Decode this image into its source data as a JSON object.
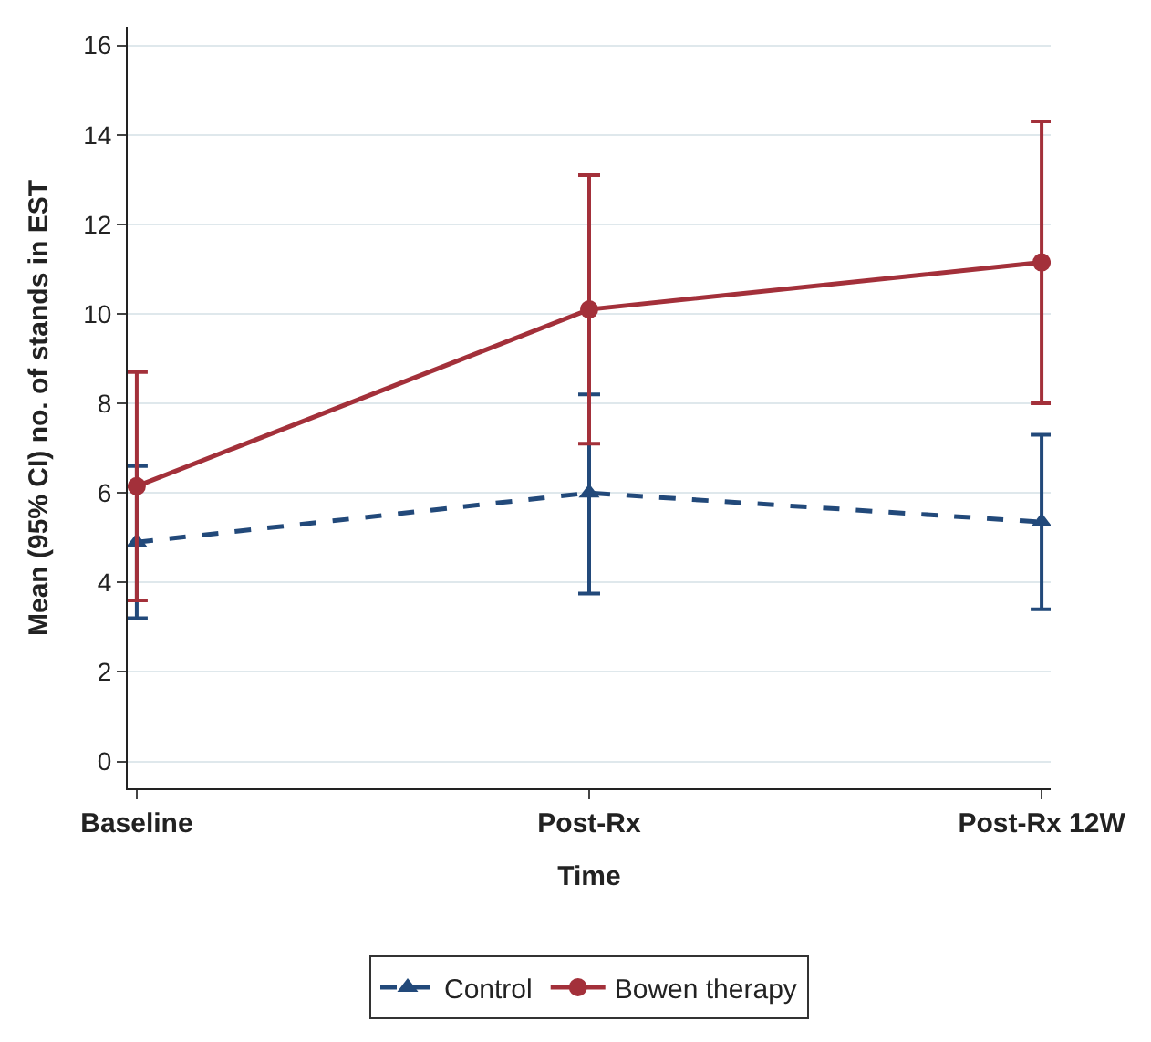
{
  "chart_data": {
    "type": "line",
    "xlabel": "Time",
    "ylabel": "Mean (95% CI) no. of stands in EST",
    "categories": [
      "Baseline",
      "Post-Rx",
      "Post-Rx 12W"
    ],
    "ylim": [
      -0.6,
      16.4
    ],
    "yticks": [
      0,
      2,
      4,
      6,
      8,
      10,
      12,
      14,
      16
    ],
    "grid": "y",
    "legend": "bottom",
    "series": [
      {
        "name": "Control",
        "color": "#22497a",
        "values": [
          4.9,
          6.0,
          5.35
        ],
        "errors": [
          [
            3.2,
            6.6
          ],
          [
            3.75,
            8.2
          ],
          [
            3.4,
            7.3
          ]
        ],
        "marker": "triangle",
        "line_style": "dashed"
      },
      {
        "name": "Bowen therapy",
        "color": "#a3303a",
        "values": [
          6.15,
          10.1,
          11.15
        ],
        "errors": [
          [
            3.6,
            8.7
          ],
          [
            7.1,
            13.1
          ],
          [
            8.0,
            14.3
          ]
        ],
        "marker": "circle",
        "line_style": "solid"
      }
    ]
  }
}
